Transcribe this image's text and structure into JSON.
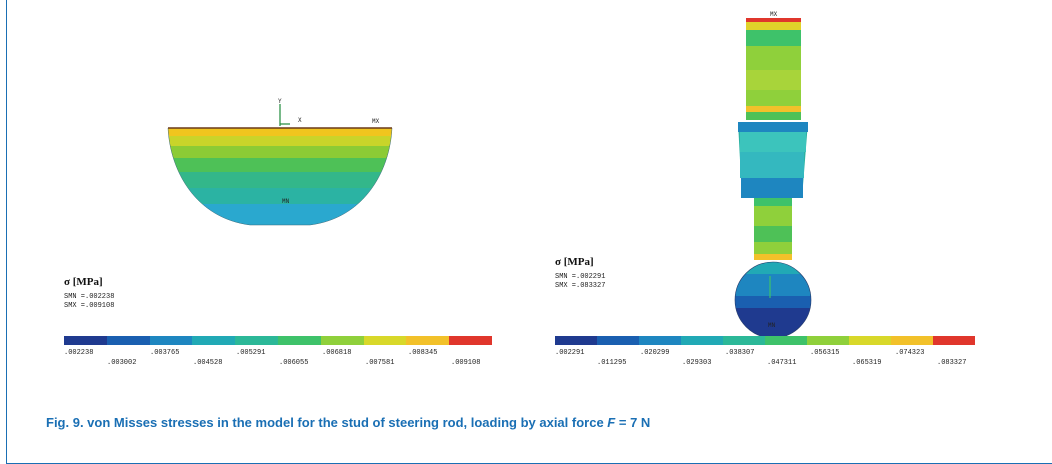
{
  "caption": {
    "prefix": "Fig. 9. von Misses stresses in the model for the stud of steering rod, loading by axial force ",
    "variable": "F",
    "suffix": " = 7 N"
  },
  "left_model": {
    "labels": {
      "y": "Y",
      "x": "X",
      "mx": "MX",
      "mn": "MN"
    },
    "legend": {
      "title": "σ [MPa]",
      "smn": "SMN =.002238",
      "smx": "SMX =.009108"
    },
    "ticks_top": [
      ".002238",
      ".003765",
      ".005291",
      ".006818",
      ".008345"
    ],
    "ticks_bottom": [
      ".003002",
      ".004528",
      ".006055",
      ".007581",
      ".009108"
    ]
  },
  "right_model": {
    "labels": {
      "mx": "MX",
      "mn": "MN"
    },
    "legend": {
      "title": "σ [MPa]",
      "smn": "SMN =.002291",
      "smx": "SMX =.083327"
    },
    "ticks_top": [
      ".002291",
      ".020299",
      ".038307",
      ".056315",
      ".074323"
    ],
    "ticks_bottom": [
      ".011295",
      ".029303",
      ".047311",
      ".065319",
      ".083327"
    ]
  },
  "colorbar": [
    "#1f3a8f",
    "#1a5fb0",
    "#1e86c0",
    "#21a9b5",
    "#2cb898",
    "#3ec26a",
    "#8fd03b",
    "#d8d82a",
    "#f2c12a",
    "#e0362c"
  ]
}
